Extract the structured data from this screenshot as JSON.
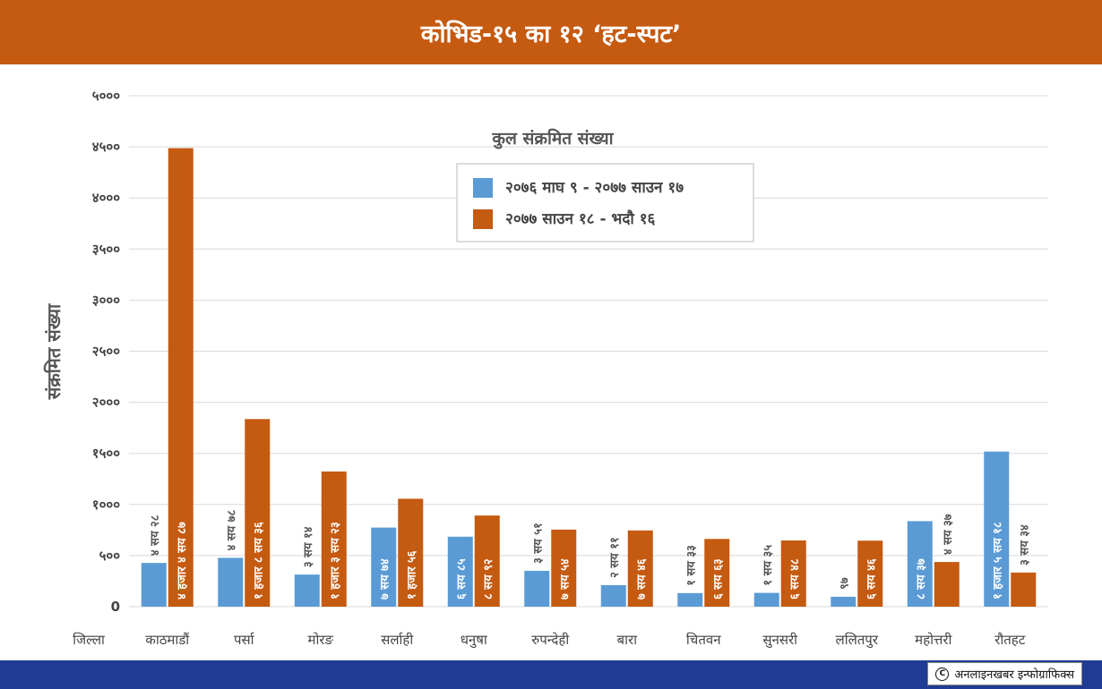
{
  "header": {
    "title": "कोभिड-१५ का १२ ‘हट-स्पट’"
  },
  "footer": {
    "credit": "अनलाइनखबर इन्फोग्राफिक्स",
    "credit_icon": "copyright-icon"
  },
  "colors": {
    "header_bg": "#c55a11",
    "footer_bg": "#1f3b93",
    "series1": "#5b9bd5",
    "series2": "#c55a11"
  },
  "chart_data": {
    "type": "bar",
    "title": "कुल संक्रमित संख्या",
    "ylabel": "संक्रमित संख्या",
    "xlabel": "जिल्ला",
    "ylim": [
      0,
      5000
    ],
    "yticks": [
      0,
      500,
      1000,
      1500,
      2000,
      2500,
      3000,
      3500,
      4000,
      4500,
      5000
    ],
    "ytick_labels": [
      "0",
      "५००",
      "१०००",
      "१५००",
      "२०००",
      "२५००",
      "३०००",
      "३५००",
      "४०००",
      "४५००",
      "५०००"
    ],
    "grid": true,
    "legend_position": "top-center",
    "categories": [
      "काठमाडौं",
      "पर्सा",
      "मोरङ",
      "सर्लाही",
      "धनुषा",
      "रुपन्देही",
      "बारा",
      "चितवन",
      "सुनसरी",
      "ललितपुर",
      "महोत्तरी",
      "रौतहट"
    ],
    "series": [
      {
        "name": "२०७६ माघ ९ - २०७७ साउन १७",
        "values": [
          428,
          478,
          314,
          774,
          685,
          351,
          211,
          133,
          135,
          97,
          837,
          1518
        ],
        "labels": [
          "४ सय २८",
          "४ सय ७८",
          "३ सय १४",
          "७ सय ७४",
          "६ सय ८५",
          "३ सय ५१",
          "२ सय ११",
          "१ सय ३३",
          "१ सय ३५",
          "९७",
          "८ सय ३७",
          "१ हजार ५ सय १८"
        ]
      },
      {
        "name": "२०७७ साउन १८ - भदौ १६",
        "values": [
          4487,
          1836,
          1323,
          1056,
          892,
          754,
          746,
          663,
          648,
          646,
          437,
          334
        ],
        "labels": [
          "४ हजार ४ सय ८७",
          "१ हजार ८ सय ३६",
          "१ हजार ३ सय २३",
          "१ हजार ५६",
          "८ सय ९२",
          "७ सय ५४",
          "७ सय ४६",
          "६ सय ६३",
          "६ सय ४८",
          "६ सय ४६",
          "४ सय ३७",
          "३ सय ३४"
        ]
      }
    ]
  }
}
